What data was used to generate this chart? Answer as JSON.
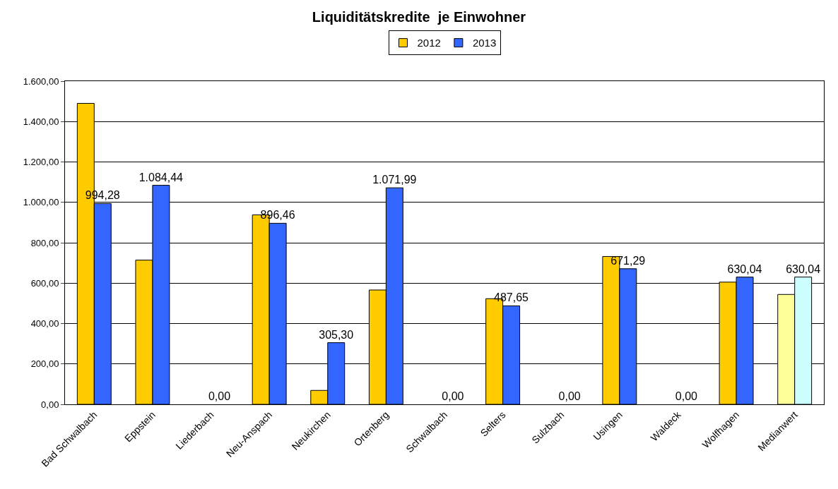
{
  "chart_data": {
    "type": "bar",
    "title": "Liquiditätskredite  je Einwohner",
    "categories": [
      "Bad Schwalbach",
      "Eppstein",
      "Liederbach",
      "Neu-Anspach",
      "Neukirchen",
      "Ortenberg",
      "Schwalbach",
      "Selters",
      "Sulzbach",
      "Usingen",
      "Waldeck",
      "Wolfhagen",
      "Medianwert"
    ],
    "series": [
      {
        "name": "2012",
        "colors": [
          "#ffcc00",
          "#ffcc00",
          "#ffcc00",
          "#ffcc00",
          "#ffcc00",
          "#ffcc00",
          "#ffcc00",
          "#ffcc00",
          "#ffcc00",
          "#ffcc00",
          "#ffcc00",
          "#ffcc00",
          "#ffff99"
        ],
        "values": [
          1490,
          714,
          0,
          938,
          69,
          566,
          0,
          523,
          0,
          732,
          0,
          605,
          544
        ]
      },
      {
        "name": "2013",
        "colors": [
          "#3366ff",
          "#3366ff",
          "#3366ff",
          "#3366ff",
          "#3366ff",
          "#3366ff",
          "#3366ff",
          "#3366ff",
          "#3366ff",
          "#3366ff",
          "#3366ff",
          "#3366ff",
          "#ccffff"
        ],
        "values": [
          994.28,
          1084.44,
          0,
          896.46,
          305.3,
          1071.99,
          0,
          487.65,
          0,
          671.29,
          0,
          630.04,
          630.04
        ],
        "value_labels": [
          "994,28",
          "1.084,44",
          "0,00",
          "896,46",
          "305,30",
          "1.071,99",
          "0,00",
          "487,65",
          "0,00",
          "671,29",
          "0,00",
          "630,04",
          "630,04"
        ]
      }
    ],
    "ylim": [
      0,
      1600
    ],
    "yticks": [
      {
        "value": 0,
        "label": "0,00"
      },
      {
        "value": 200,
        "label": "200,00"
      },
      {
        "value": 400,
        "label": "400,00"
      },
      {
        "value": 600,
        "label": "600,00"
      },
      {
        "value": 800,
        "label": "800,00"
      },
      {
        "value": 1000,
        "label": "1.000,00"
      },
      {
        "value": 1200,
        "label": "1.200,00"
      },
      {
        "value": 1400,
        "label": "1.400,00"
      },
      {
        "value": 1600,
        "label": "1.600,00"
      }
    ],
    "grid": "y",
    "legend": "top"
  }
}
